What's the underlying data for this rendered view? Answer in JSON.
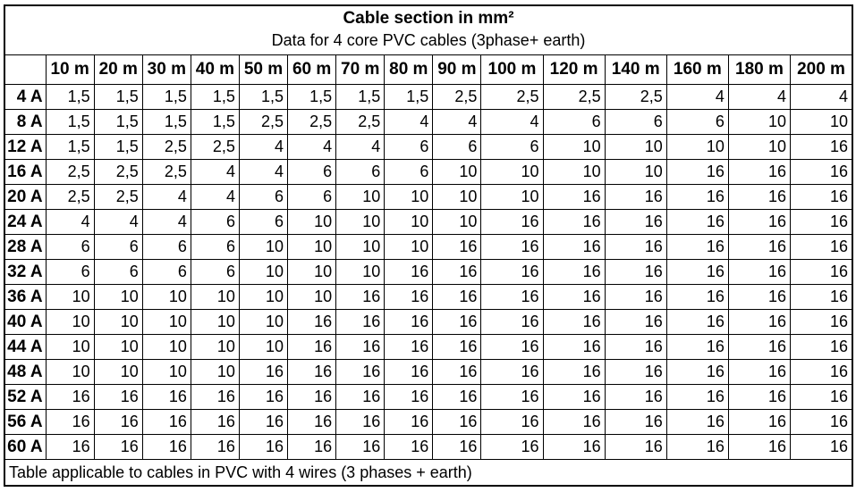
{
  "table": {
    "title": "Cable section in mm²",
    "subtitle": "Data for 4 core PVC cables (3phase+ earth)",
    "footnote": "Table applicable to cables in PVC with 4 wires (3 phases + earth)",
    "corner_label": "",
    "columns": [
      "10 m",
      "20 m",
      "30 m",
      "40 m",
      "50 m",
      "60 m",
      "70 m",
      "80 m",
      "90 m",
      "100 m",
      "120 m",
      "140 m",
      "160 m",
      "180 m",
      "200 m"
    ],
    "rows": [
      {
        "label": "4 A",
        "values": [
          "1,5",
          "1,5",
          "1,5",
          "1,5",
          "1,5",
          "1,5",
          "1,5",
          "1,5",
          "2,5",
          "2,5",
          "2,5",
          "2,5",
          "4",
          "4",
          "4"
        ]
      },
      {
        "label": "8 A",
        "values": [
          "1,5",
          "1,5",
          "1,5",
          "1,5",
          "2,5",
          "2,5",
          "2,5",
          "4",
          "4",
          "4",
          "6",
          "6",
          "6",
          "10",
          "10"
        ]
      },
      {
        "label": "12 A",
        "values": [
          "1,5",
          "1,5",
          "2,5",
          "2,5",
          "4",
          "4",
          "4",
          "6",
          "6",
          "6",
          "10",
          "10",
          "10",
          "10",
          "16"
        ]
      },
      {
        "label": "16 A",
        "values": [
          "2,5",
          "2,5",
          "2,5",
          "4",
          "4",
          "6",
          "6",
          "6",
          "10",
          "10",
          "10",
          "10",
          "16",
          "16",
          "16"
        ]
      },
      {
        "label": "20 A",
        "values": [
          "2,5",
          "2,5",
          "4",
          "4",
          "6",
          "6",
          "10",
          "10",
          "10",
          "10",
          "16",
          "16",
          "16",
          "16",
          "16"
        ]
      },
      {
        "label": "24 A",
        "values": [
          "4",
          "4",
          "4",
          "6",
          "6",
          "10",
          "10",
          "10",
          "10",
          "16",
          "16",
          "16",
          "16",
          "16",
          "16"
        ]
      },
      {
        "label": "28 A",
        "values": [
          "6",
          "6",
          "6",
          "6",
          "10",
          "10",
          "10",
          "10",
          "16",
          "16",
          "16",
          "16",
          "16",
          "16",
          "16"
        ]
      },
      {
        "label": "32 A",
        "values": [
          "6",
          "6",
          "6",
          "6",
          "10",
          "10",
          "10",
          "16",
          "16",
          "16",
          "16",
          "16",
          "16",
          "16",
          "16"
        ]
      },
      {
        "label": "36 A",
        "values": [
          "10",
          "10",
          "10",
          "10",
          "10",
          "10",
          "16",
          "16",
          "16",
          "16",
          "16",
          "16",
          "16",
          "16",
          "16"
        ]
      },
      {
        "label": "40 A",
        "values": [
          "10",
          "10",
          "10",
          "10",
          "10",
          "16",
          "16",
          "16",
          "16",
          "16",
          "16",
          "16",
          "16",
          "16",
          "16"
        ]
      },
      {
        "label": "44 A",
        "values": [
          "10",
          "10",
          "10",
          "10",
          "10",
          "16",
          "16",
          "16",
          "16",
          "16",
          "16",
          "16",
          "16",
          "16",
          "16"
        ]
      },
      {
        "label": "48 A",
        "values": [
          "10",
          "10",
          "10",
          "10",
          "16",
          "16",
          "16",
          "16",
          "16",
          "16",
          "16",
          "16",
          "16",
          "16",
          "16"
        ]
      },
      {
        "label": "52 A",
        "values": [
          "16",
          "16",
          "16",
          "16",
          "16",
          "16",
          "16",
          "16",
          "16",
          "16",
          "16",
          "16",
          "16",
          "16",
          "16"
        ]
      },
      {
        "label": "56 A",
        "values": [
          "16",
          "16",
          "16",
          "16",
          "16",
          "16",
          "16",
          "16",
          "16",
          "16",
          "16",
          "16",
          "16",
          "16",
          "16"
        ]
      },
      {
        "label": "60 A",
        "values": [
          "16",
          "16",
          "16",
          "16",
          "16",
          "16",
          "16",
          "16",
          "16",
          "16",
          "16",
          "16",
          "16",
          "16",
          "16"
        ]
      }
    ]
  },
  "colors": {
    "border": "#000000",
    "text": "#000000",
    "background": "#ffffff"
  }
}
